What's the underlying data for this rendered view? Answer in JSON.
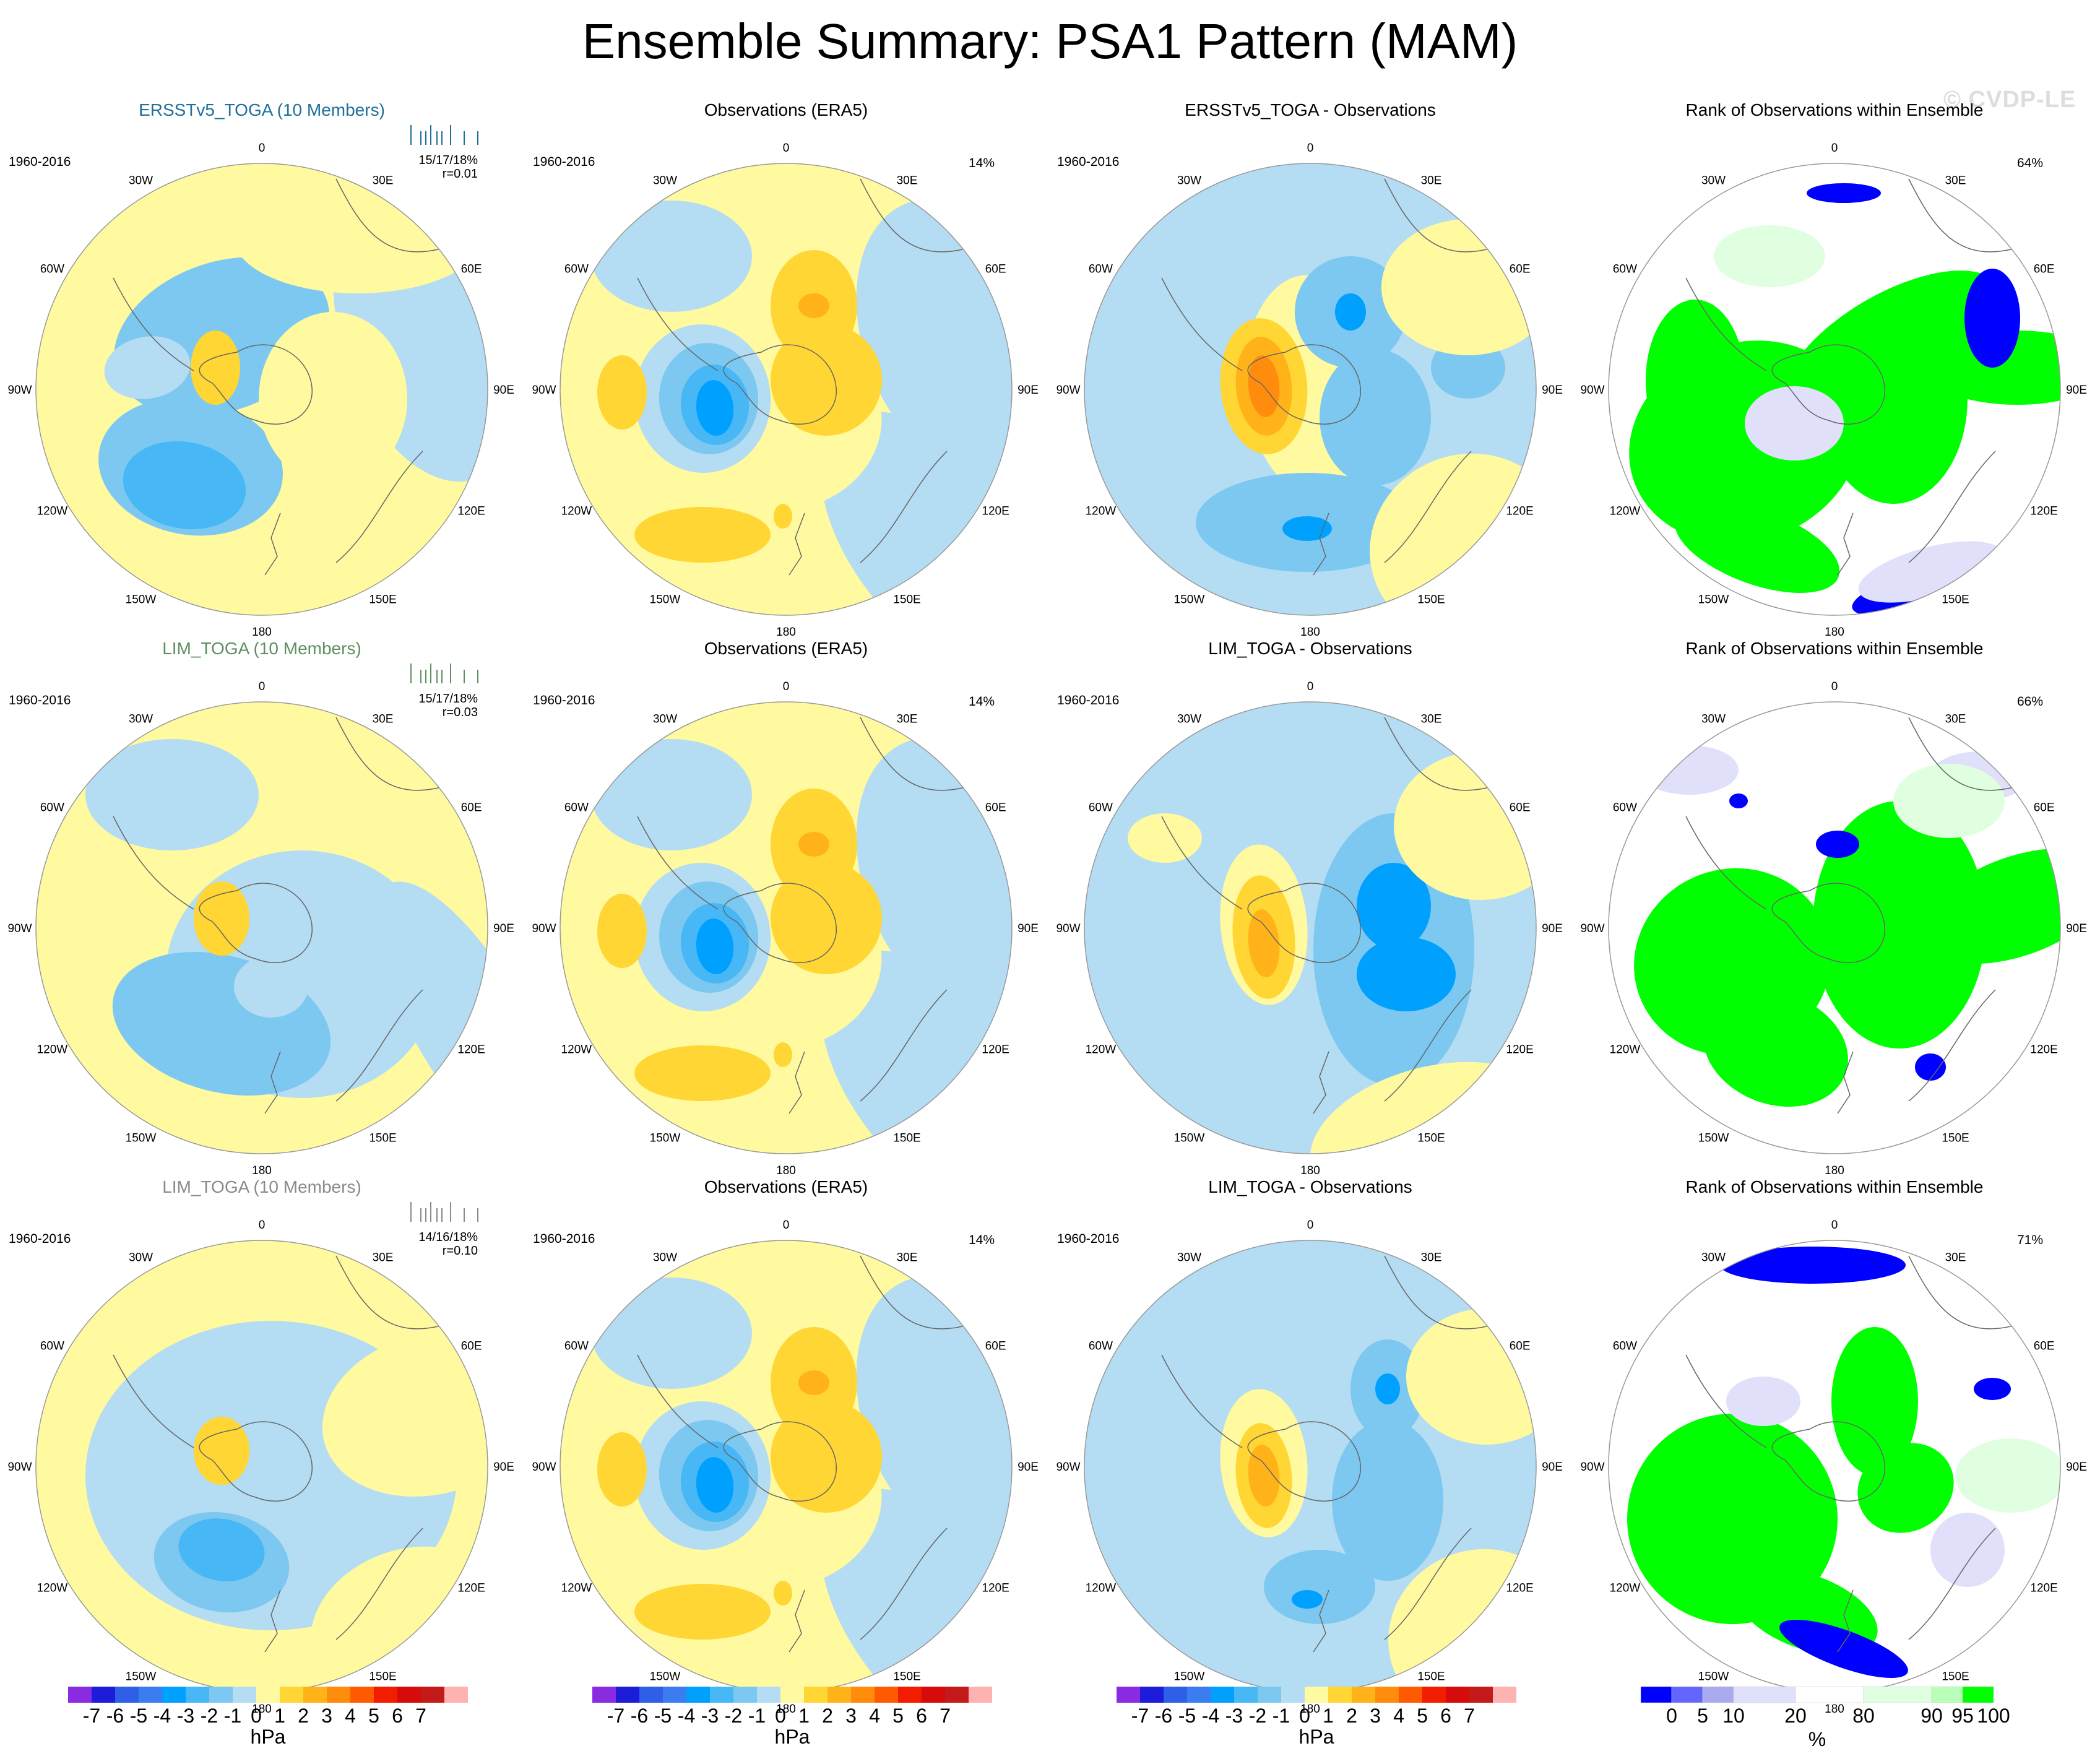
{
  "title": "Ensemble Summary: PSA1 Pattern (MAM)",
  "watermark": "© CVDP-LE",
  "period": "1960-2016",
  "longitude_labels": [
    "0",
    "30E",
    "60E",
    "90E",
    "120E",
    "150E",
    "180",
    "150W",
    "120W",
    "90W",
    "60W",
    "30W"
  ],
  "colors": {
    "ensemble_title_1": "#1f6f9a",
    "ensemble_title_2": "#5f8f5f",
    "ensemble_title_3": "#8a8a8a",
    "hpa_scale": [
      "#8a2be2",
      "#1c1cd9",
      "#2e5fe6",
      "#3b7cf0",
      "#00a0ff",
      "#47b8f5",
      "#7cc8f0",
      "#b4dcf2",
      "#fffaa0",
      "#ffd633",
      "#ffb319",
      "#ff8c0d",
      "#ff5a00",
      "#f21d00",
      "#d60c0c",
      "#c41a1a",
      "#ffb2b2"
    ],
    "rank_scale": [
      "#0000ff",
      "#6464ff",
      "#aaaaee",
      "#e0e0fa",
      "#ffffff",
      "#e0ffe0",
      "#b9ffb9",
      "#00ff00"
    ],
    "green": "#00ff00",
    "blue": "#0000ff"
  },
  "rows": [
    {
      "ensemble": {
        "title": "ERSSTv5_TOGA (10 Members)",
        "stats_line1": "15/17/18%",
        "stats_line2": "r=0.01"
      },
      "observations": {
        "title": "Observations (ERA5)",
        "percent": "14%"
      },
      "difference": {
        "title": "ERSSTv5_TOGA - Observations"
      },
      "rank": {
        "title": "Rank of Observations within Ensemble",
        "percent": "64%"
      }
    },
    {
      "ensemble": {
        "title": "LIM_TOGA (10 Members)",
        "stats_line1": "15/17/18%",
        "stats_line2": "r=0.03"
      },
      "observations": {
        "title": "Observations (ERA5)",
        "percent": "14%"
      },
      "difference": {
        "title": "LIM_TOGA - Observations"
      },
      "rank": {
        "title": "Rank of Observations within Ensemble",
        "percent": "66%"
      }
    },
    {
      "ensemble": {
        "title": "LIM_TOGA (10 Members)",
        "stats_line1": "14/16/18%",
        "stats_line2": "r=0.10"
      },
      "observations": {
        "title": "Observations (ERA5)",
        "percent": "14%"
      },
      "difference": {
        "title": "LIM_TOGA - Observations"
      },
      "rank": {
        "title": "Rank of Observations within Ensemble",
        "percent": "71%"
      }
    }
  ],
  "chart_data": {
    "type": "heatmap",
    "title": "Ensemble Summary: PSA1 Pattern (MAM)",
    "projection": "south polar stereographic",
    "panels_per_row": [
      "ensemble mean pattern",
      "observations",
      "ensemble minus observations",
      "rank of observations within ensemble"
    ],
    "colorbar_hpa": {
      "label": "hPa",
      "tick_labels": [
        "-7",
        "-6",
        "-5",
        "-4",
        "-3",
        "-2",
        "-1",
        "0",
        "1",
        "2",
        "3",
        "4",
        "5",
        "6",
        "7"
      ],
      "levels": [
        -7,
        -6,
        -5,
        -4,
        -3,
        -2,
        -1,
        -0.5,
        0.5,
        1,
        2,
        3,
        4,
        5,
        6,
        7
      ]
    },
    "colorbar_rank": {
      "label": "%",
      "tick_labels": [
        "0",
        "5",
        "10",
        "20",
        "80",
        "90",
        "95",
        "100"
      ],
      "levels": [
        0,
        5,
        10,
        20,
        80,
        90,
        95,
        100
      ]
    }
  }
}
